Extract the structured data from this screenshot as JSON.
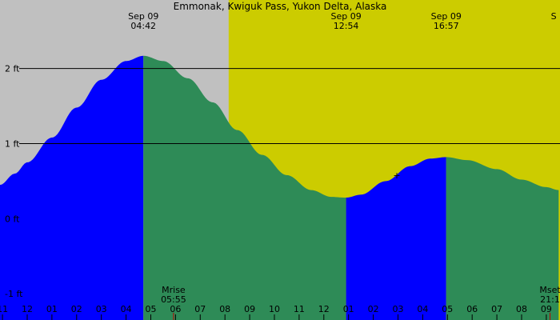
{
  "chart_data": {
    "type": "area",
    "title": "Emmonak, Kwiguk Pass, Yukon Delta, Alaska",
    "y_unit": "ft",
    "ylim": [
      -1.35,
      2.7
    ],
    "y_ticks": [
      {
        "value": 2,
        "label": "2 ft"
      },
      {
        "value": 1,
        "label": "1 ft"
      },
      {
        "value": 0,
        "label": "0 ft"
      },
      {
        "value": -1,
        "label": "-1 ft"
      }
    ],
    "x_hours_range": [
      -1.1,
      21.5
    ],
    "hour_ticks": [
      {
        "h": -1,
        "label": "11"
      },
      {
        "h": 0,
        "label": "12"
      },
      {
        "h": 1,
        "label": "01"
      },
      {
        "h": 2,
        "label": "02"
      },
      {
        "h": 3,
        "label": "03"
      },
      {
        "h": 4,
        "label": "04"
      },
      {
        "h": 5,
        "label": "05"
      },
      {
        "h": 6,
        "label": "06"
      },
      {
        "h": 7,
        "label": "07"
      },
      {
        "h": 8,
        "label": "08"
      },
      {
        "h": 9,
        "label": "09"
      },
      {
        "h": 10,
        "label": "10"
      },
      {
        "h": 11,
        "label": "11"
      },
      {
        "h": 12,
        "label": "12"
      },
      {
        "h": 13,
        "label": "01"
      },
      {
        "h": 14,
        "label": "02"
      },
      {
        "h": 15,
        "label": "03"
      },
      {
        "h": 16,
        "label": "04"
      },
      {
        "h": 17,
        "label": "05"
      },
      {
        "h": 18,
        "label": "06"
      },
      {
        "h": 19,
        "label": "07"
      },
      {
        "h": 20,
        "label": "08"
      },
      {
        "h": 21,
        "label": "09"
      }
    ],
    "tide_events": [
      {
        "date": "Sep 09",
        "time": "04:42",
        "h": 4.7,
        "ft": 2.17,
        "type": "high"
      },
      {
        "date": "Sep 09",
        "time": "12:54",
        "h": 12.9,
        "ft": 0.28,
        "type": "low"
      },
      {
        "date": "Sep 09",
        "time": "16:57",
        "h": 16.95,
        "ft": 0.82,
        "type": "high"
      },
      {
        "date": "S",
        "time": "",
        "h": 21.3,
        "ft": null,
        "type": "low"
      }
    ],
    "tide_curve": [
      {
        "h": -1.1,
        "ft": 0.45
      },
      {
        "h": -0.5,
        "ft": 0.6
      },
      {
        "h": 0.0,
        "ft": 0.75
      },
      {
        "h": 1.0,
        "ft": 1.08
      },
      {
        "h": 2.0,
        "ft": 1.48
      },
      {
        "h": 3.0,
        "ft": 1.85
      },
      {
        "h": 4.0,
        "ft": 2.1
      },
      {
        "h": 4.7,
        "ft": 2.17
      },
      {
        "h": 5.5,
        "ft": 2.1
      },
      {
        "h": 6.5,
        "ft": 1.87
      },
      {
        "h": 7.5,
        "ft": 1.55
      },
      {
        "h": 8.5,
        "ft": 1.18
      },
      {
        "h": 9.5,
        "ft": 0.85
      },
      {
        "h": 10.5,
        "ft": 0.58
      },
      {
        "h": 11.5,
        "ft": 0.38
      },
      {
        "h": 12.3,
        "ft": 0.29
      },
      {
        "h": 12.9,
        "ft": 0.28
      },
      {
        "h": 13.5,
        "ft": 0.32
      },
      {
        "h": 14.5,
        "ft": 0.5
      },
      {
        "h": 15.5,
        "ft": 0.7
      },
      {
        "h": 16.3,
        "ft": 0.8
      },
      {
        "h": 16.95,
        "ft": 0.82
      },
      {
        "h": 17.8,
        "ft": 0.78
      },
      {
        "h": 19.0,
        "ft": 0.66
      },
      {
        "h": 20.0,
        "ft": 0.52
      },
      {
        "h": 21.0,
        "ft": 0.42
      },
      {
        "h": 21.5,
        "ft": 0.38
      }
    ],
    "daylight_h": [
      8.15,
      21.5
    ],
    "rising_segments": [
      [
        -1.1,
        4.7
      ],
      [
        12.9,
        16.95
      ]
    ],
    "moon_events": [
      {
        "label": "Mrise",
        "time": "05:55",
        "h": 5.92
      },
      {
        "label": "Mset",
        "time": "21:1",
        "h": 21.15
      }
    ],
    "marker": {
      "h": 14.95,
      "ft": 0.58,
      "symbol": "+"
    },
    "colors": {
      "night": "#c0c0c0",
      "day": "#cccc00",
      "rising": "#0000ff",
      "falling": "#2e8b57",
      "line": "#000000",
      "moon_tick": "#c00000"
    }
  }
}
